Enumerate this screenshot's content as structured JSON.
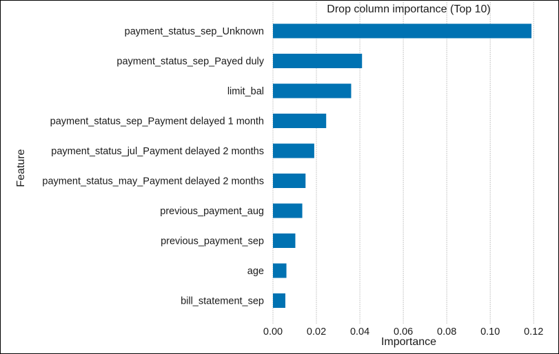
{
  "chart_data": {
    "type": "bar",
    "orientation": "horizontal",
    "title": "Drop column importance (Top 10)",
    "xlabel": "Importance",
    "ylabel": "Feature",
    "xlim": [
      0,
      0.125
    ],
    "xticks": [
      0.0,
      0.02,
      0.04,
      0.06,
      0.08,
      0.1,
      0.12
    ],
    "xtick_labels": [
      "0.00",
      "0.02",
      "0.04",
      "0.06",
      "0.08",
      "0.10",
      "0.12"
    ],
    "grid": true,
    "bar_color": "#0072b2",
    "categories": [
      "payment_status_sep_Unknown",
      "payment_status_sep_Payed duly",
      "limit_bal",
      "payment_status_sep_Payment delayed 1 month",
      "payment_status_jul_Payment delayed 2 months",
      "payment_status_may_Payment delayed 2 months",
      "previous_payment_aug",
      "previous_payment_sep",
      "age",
      "bill_statement_sep"
    ],
    "values": [
      0.119,
      0.041,
      0.036,
      0.0245,
      0.019,
      0.015,
      0.0135,
      0.0103,
      0.0062,
      0.0057
    ]
  }
}
